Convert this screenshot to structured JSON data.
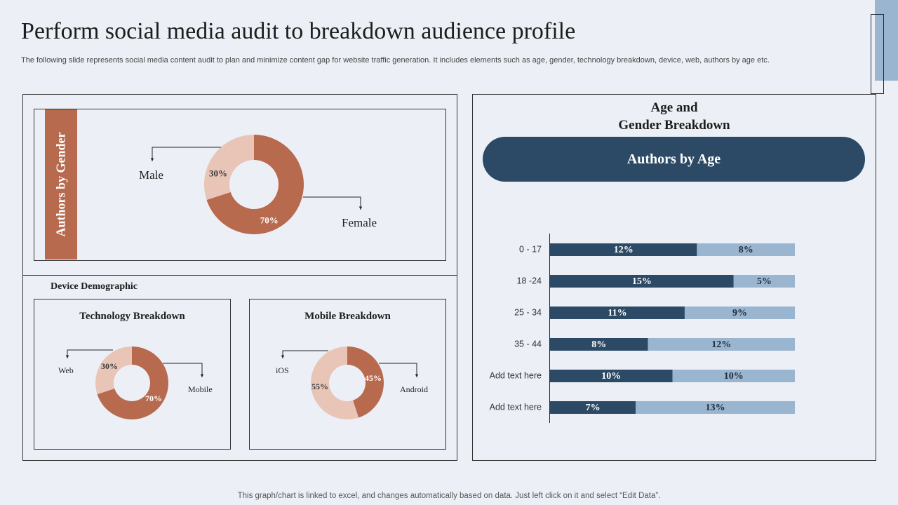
{
  "title": "Perform social media audit to breakdown audience profile",
  "subtitle": "The following slide represents social media content audit to plan and minimize content gap for website traffic generation. It includes elements such as age, gender, technology breakdown, device, web, authors by age etc.",
  "footer": "This graph/chart is linked to excel,  and changes automatically based on data. Just left click on it and select “Edit Data”.",
  "gender_panel": {
    "strip_label": "Authors by Gender"
  },
  "device_panel": {
    "heading": "Device Demographic",
    "technology_title": "Technology Breakdown",
    "mobile_title": "Mobile Breakdown"
  },
  "age_panel": {
    "heading_line1": "Age and",
    "heading_line2": "Gender Breakdown",
    "pill_label": "Authors by Age"
  },
  "colors": {
    "primary": "#b86a4e",
    "secondary": "#e8c5b7",
    "navy": "#2c4a65",
    "light_blue": "#9ab5cf"
  },
  "chart_data": [
    {
      "type": "pie",
      "id": "gender",
      "categories": [
        "Male",
        "Female"
      ],
      "values": [
        30,
        70
      ],
      "value_labels": [
        "30%",
        "70%"
      ]
    },
    {
      "type": "pie",
      "id": "technology",
      "title": "Technology Breakdown",
      "categories": [
        "Web",
        "Mobile"
      ],
      "values": [
        30,
        70
      ],
      "value_labels": [
        "30%",
        "70%"
      ]
    },
    {
      "type": "pie",
      "id": "mobile",
      "title": "Mobile Breakdown",
      "categories": [
        "iOS",
        "Android"
      ],
      "values": [
        55,
        45
      ],
      "value_labels": [
        "55%",
        "45%"
      ]
    },
    {
      "type": "bar",
      "id": "authors_by_age",
      "title": "Authors by Age",
      "orientation": "horizontal",
      "stacked": true,
      "categories": [
        "0 - 17",
        "18 -24",
        "25 - 34",
        "35 - 44",
        "Add text here",
        "Add text here"
      ],
      "series": [
        {
          "values": [
            12,
            15,
            11,
            8,
            10,
            7
          ],
          "labels": [
            "12%",
            "15%",
            "11%",
            "8%",
            "10%",
            "7%"
          ]
        },
        {
          "values": [
            8,
            5,
            9,
            12,
            10,
            13
          ],
          "labels": [
            "8%",
            "5%",
            "9%",
            "12%",
            "10%",
            "13%"
          ]
        }
      ],
      "xlim": [
        0,
        20
      ]
    }
  ]
}
